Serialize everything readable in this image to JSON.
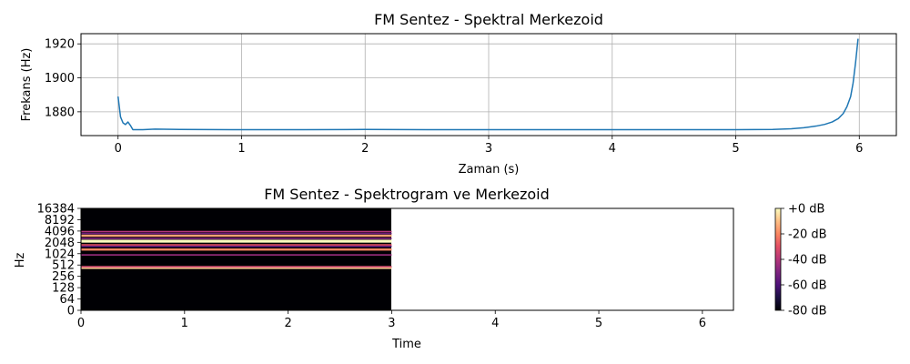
{
  "chart_data": [
    {
      "type": "line",
      "title": "FM Sentez - Spektral Merkezoid",
      "xlabel": "Zaman (s)",
      "ylabel": "Frekans (Hz)",
      "xlim": [
        -0.3,
        6.3
      ],
      "ylim": [
        1866,
        1926
      ],
      "xticks": [
        0,
        1,
        2,
        3,
        4,
        5,
        6
      ],
      "yticks": [
        1880,
        1900,
        1920
      ],
      "grid": true,
      "line_color": "#1f77b4",
      "series": [
        {
          "x": [
            0,
            0.02,
            0.04,
            0.06,
            0.08,
            0.1,
            0.12,
            0.15,
            0.2,
            0.3,
            0.5,
            1,
            1.5,
            2,
            2.5,
            3,
            3.5,
            4,
            4.5,
            5,
            5.3,
            5.45,
            5.55,
            5.65,
            5.72,
            5.78,
            5.83,
            5.87,
            5.9,
            5.93,
            5.95,
            5.97,
            5.99
          ],
          "y": [
            1889,
            1877,
            1873.5,
            1872.5,
            1874,
            1872,
            1869.5,
            1869.5,
            1869.5,
            1869.8,
            1869.6,
            1869.5,
            1869.5,
            1869.6,
            1869.5,
            1869.5,
            1869.5,
            1869.5,
            1869.5,
            1869.5,
            1869.6,
            1870,
            1870.6,
            1871.6,
            1872.6,
            1874,
            1876,
            1879,
            1883,
            1889,
            1897,
            1909,
            1923
          ]
        }
      ]
    },
    {
      "type": "heatmap",
      "title": "FM Sentez - Spektrogram ve Merkezoid",
      "xlabel": "Time",
      "ylabel": "Hz",
      "xlim": [
        0,
        6.3
      ],
      "xticks": [
        0,
        1,
        2,
        3,
        4,
        5,
        6
      ],
      "yticks": [
        "0",
        "64",
        "128",
        "256",
        "512",
        "1024",
        "2048",
        "4096",
        "8192",
        "16384"
      ],
      "y_scale": "log",
      "data_extent_time": [
        0,
        3
      ],
      "harmonic_bands_hz": [
        {
          "hz": 440,
          "db": -8
        },
        {
          "hz": 460,
          "db": -35
        },
        {
          "hz": 950,
          "db": -45
        },
        {
          "hz": 1320,
          "db": -20
        },
        {
          "hz": 1600,
          "db": -55
        },
        {
          "hz": 1760,
          "db": -30
        },
        {
          "hz": 2200,
          "db": 0
        },
        {
          "hz": 2600,
          "db": -50
        },
        {
          "hz": 3080,
          "db": -15
        },
        {
          "hz": 3520,
          "db": -55
        },
        {
          "hz": 3960,
          "db": -40
        }
      ],
      "colorbar": {
        "labels": [
          "+0 dB",
          "-20 dB",
          "-40 dB",
          "-60 dB",
          "-80 dB"
        ],
        "min_db": -80,
        "max_db": 0,
        "colormap": "magma"
      }
    }
  ]
}
